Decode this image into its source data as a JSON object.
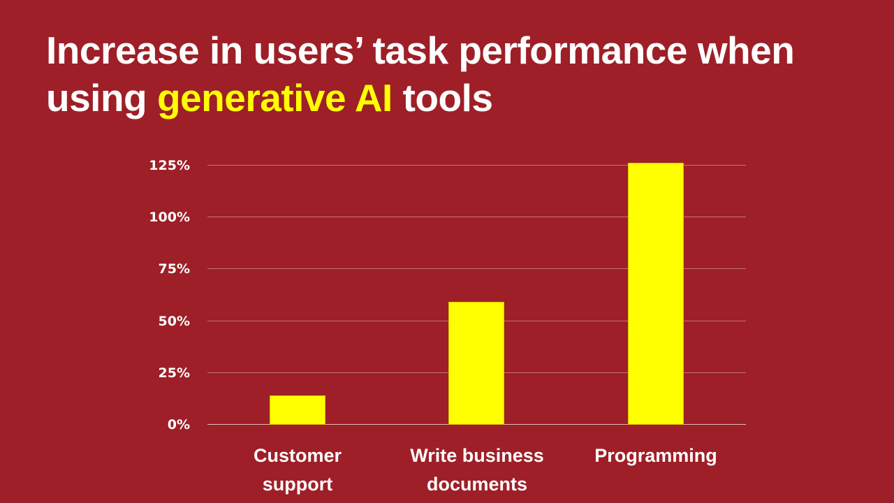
{
  "title": {
    "part1": "Increase in users’ task performance when using ",
    "highlight": "generative AI",
    "part2": " tools",
    "highlight_color": "#FFFF00"
  },
  "colors": {
    "background": "#9E1F27",
    "bar": "#FFFF00",
    "text": "#FFFFFF"
  },
  "y_ticks": [
    "125%",
    "100%",
    "75%",
    "50%",
    "25%",
    "0%"
  ],
  "x_labels": [
    {
      "line1": "Customer",
      "line2": "support"
    },
    {
      "line1": "Write business",
      "line2": "documents"
    },
    {
      "line1": "Programming",
      "line2": ""
    }
  ],
  "chart_data": {
    "type": "bar",
    "title": "Increase in users’ task performance when using generative AI tools",
    "categories": [
      "Customer support",
      "Write business documents",
      "Programming"
    ],
    "values": [
      14,
      59,
      126
    ],
    "unit": "%",
    "xlabel": "",
    "ylabel": "",
    "ylim": [
      0,
      125
    ],
    "y_ticks": [
      0,
      25,
      50,
      75,
      100,
      125
    ],
    "grid": true,
    "legend": "none",
    "bar_color": "#FFFF00"
  }
}
